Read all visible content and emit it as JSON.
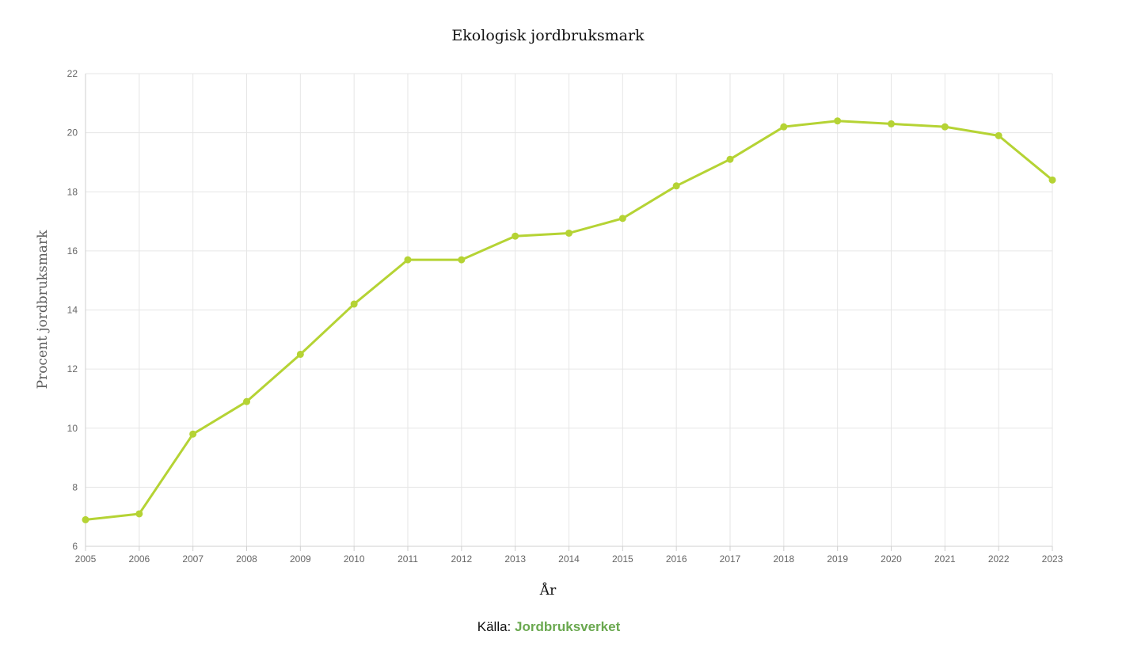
{
  "colors": {
    "line": "#b5d334",
    "link": "#6aa84f"
  },
  "source": {
    "prefix": "Källa:",
    "link_label": "Jordbruksverket"
  },
  "chart_data": {
    "type": "line",
    "title": "Ekologisk jordbruksmark",
    "xlabel": "År",
    "ylabel": "Procent jordbruksmark",
    "ylim": [
      6,
      22
    ],
    "y_ticks": [
      6,
      8,
      10,
      12,
      14,
      16,
      18,
      20,
      22
    ],
    "grid": true,
    "x": [
      "2005",
      "2006",
      "2007",
      "2008",
      "2009",
      "2010",
      "2011",
      "2012",
      "2013",
      "2014",
      "2015",
      "2016",
      "2017",
      "2018",
      "2019",
      "2020",
      "2021",
      "2022",
      "2023"
    ],
    "series": [
      {
        "values": [
          6.9,
          7.1,
          9.8,
          10.9,
          12.5,
          14.2,
          15.7,
          15.7,
          16.5,
          16.6,
          17.1,
          18.2,
          19.1,
          20.2,
          20.4,
          20.3,
          20.2,
          19.9,
          18.4
        ]
      }
    ]
  }
}
